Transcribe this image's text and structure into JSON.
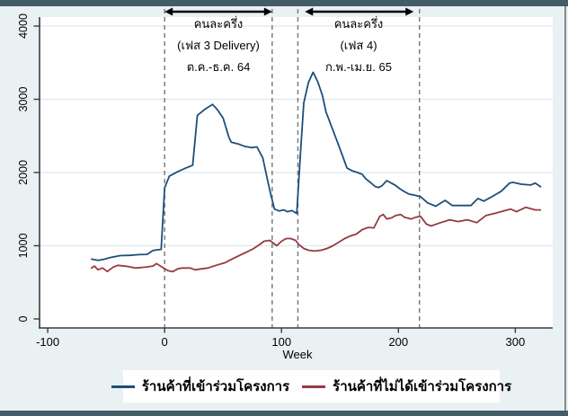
{
  "window": {
    "background_color": "#eaf1f3",
    "accent_bar_color": "#425d66"
  },
  "chart_data": {
    "type": "line",
    "title": "",
    "xlabel": "Week",
    "ylabel": "",
    "x_ticks": [
      -100,
      0,
      100,
      200,
      300
    ],
    "y_ticks": [
      0,
      1000,
      2000,
      3000,
      4000
    ],
    "xlim": [
      -107,
      332
    ],
    "ylim": [
      -123,
      4123
    ],
    "grid": true,
    "legend_position": "bottom-center",
    "colors": {
      "plot_background": "#ffffff",
      "gridline": "#dce9ed",
      "axis": "#3b3b3b",
      "dashed_line": "#757575",
      "arrow": "#000000",
      "text": "#000000"
    },
    "dashed_lines_x": [
      0,
      92,
      114,
      218
    ],
    "arrows": [
      {
        "x_start": 0,
        "x_end": 92
      },
      {
        "x_start": 120,
        "x_end": 213
      }
    ],
    "annotations": [
      {
        "lines": [
          "คนละครึ่ง",
          "(เฟส 3 Delivery)",
          "ต.ค.-ธ.ค. 64"
        ],
        "center_week": 46
      },
      {
        "lines": [
          "คนละครึ่ง",
          "(เฟส 4)",
          "ก.พ.-เม.ย. 65"
        ],
        "center_week": 166
      }
    ],
    "series": [
      {
        "name": "ร้านค้าที่เข้าร่วมโครงการ",
        "color": "#1f4e79",
        "points": [
          [
            -63,
            820
          ],
          [
            -57,
            800
          ],
          [
            -52,
            815
          ],
          [
            -46,
            840
          ],
          [
            -38,
            865
          ],
          [
            -30,
            868
          ],
          [
            -22,
            878
          ],
          [
            -15,
            882
          ],
          [
            -10,
            935
          ],
          [
            -6,
            945
          ],
          [
            -3,
            950
          ],
          [
            0,
            1790
          ],
          [
            4,
            1950
          ],
          [
            11,
            2010
          ],
          [
            18,
            2060
          ],
          [
            24,
            2100
          ],
          [
            28,
            2780
          ],
          [
            35,
            2870
          ],
          [
            41,
            2930
          ],
          [
            45,
            2860
          ],
          [
            50,
            2745
          ],
          [
            55,
            2480
          ],
          [
            57,
            2415
          ],
          [
            63,
            2390
          ],
          [
            68,
            2360
          ],
          [
            74,
            2340
          ],
          [
            79,
            2350
          ],
          [
            84,
            2200
          ],
          [
            88,
            1900
          ],
          [
            91,
            1690
          ],
          [
            94,
            1500
          ],
          [
            98,
            1475
          ],
          [
            102,
            1490
          ],
          [
            105,
            1465
          ],
          [
            109,
            1480
          ],
          [
            113,
            1440
          ],
          [
            116,
            2220
          ],
          [
            119,
            2950
          ],
          [
            123,
            3230
          ],
          [
            127,
            3370
          ],
          [
            131,
            3240
          ],
          [
            135,
            3050
          ],
          [
            138,
            2830
          ],
          [
            142,
            2660
          ],
          [
            147,
            2450
          ],
          [
            151,
            2280
          ],
          [
            156,
            2060
          ],
          [
            161,
            2020
          ],
          [
            165,
            2000
          ],
          [
            169,
            1975
          ],
          [
            172,
            1915
          ],
          [
            176,
            1865
          ],
          [
            180,
            1810
          ],
          [
            183,
            1795
          ],
          [
            186,
            1820
          ],
          [
            190,
            1890
          ],
          [
            194,
            1855
          ],
          [
            197,
            1830
          ],
          [
            201,
            1780
          ],
          [
            205,
            1740
          ],
          [
            209,
            1705
          ],
          [
            214,
            1690
          ],
          [
            219,
            1670
          ],
          [
            225,
            1585
          ],
          [
            232,
            1540
          ],
          [
            240,
            1620
          ],
          [
            246,
            1550
          ],
          [
            254,
            1550
          ],
          [
            262,
            1550
          ],
          [
            268,
            1645
          ],
          [
            273,
            1610
          ],
          [
            280,
            1670
          ],
          [
            288,
            1745
          ],
          [
            295,
            1855
          ],
          [
            298,
            1865
          ],
          [
            305,
            1840
          ],
          [
            313,
            1830
          ],
          [
            317,
            1855
          ],
          [
            322,
            1800
          ]
        ]
      },
      {
        "name": "ร้านค้าที่ไม่ได้เข้าร่วมโครงการ",
        "color": "#963a40",
        "points": [
          [
            -63,
            690
          ],
          [
            -60,
            722
          ],
          [
            -57,
            672
          ],
          [
            -53,
            695
          ],
          [
            -49,
            648
          ],
          [
            -44,
            708
          ],
          [
            -40,
            732
          ],
          [
            -33,
            720
          ],
          [
            -25,
            695
          ],
          [
            -17,
            707
          ],
          [
            -10,
            722
          ],
          [
            -7,
            756
          ],
          [
            -1,
            695
          ],
          [
            3,
            658
          ],
          [
            7,
            646
          ],
          [
            11,
            683
          ],
          [
            15,
            695
          ],
          [
            22,
            695
          ],
          [
            26,
            671
          ],
          [
            31,
            683
          ],
          [
            37,
            695
          ],
          [
            44,
            732
          ],
          [
            52,
            770
          ],
          [
            59,
            829
          ],
          [
            67,
            890
          ],
          [
            75,
            951
          ],
          [
            81,
            1012
          ],
          [
            85,
            1061
          ],
          [
            90,
            1073
          ],
          [
            93,
            1035
          ],
          [
            96,
            1000
          ],
          [
            100,
            1061
          ],
          [
            104,
            1098
          ],
          [
            108,
            1098
          ],
          [
            112,
            1073
          ],
          [
            115,
            1012
          ],
          [
            119,
            963
          ],
          [
            123,
            939
          ],
          [
            128,
            927
          ],
          [
            134,
            939
          ],
          [
            139,
            963
          ],
          [
            144,
            1000
          ],
          [
            149,
            1049
          ],
          [
            154,
            1098
          ],
          [
            159,
            1134
          ],
          [
            164,
            1160
          ],
          [
            169,
            1220
          ],
          [
            174,
            1250
          ],
          [
            179,
            1244
          ],
          [
            184,
            1400
          ],
          [
            187,
            1427
          ],
          [
            190,
            1366
          ],
          [
            194,
            1380
          ],
          [
            198,
            1415
          ],
          [
            202,
            1427
          ],
          [
            205,
            1390
          ],
          [
            211,
            1366
          ],
          [
            215,
            1390
          ],
          [
            219,
            1400
          ],
          [
            224,
            1295
          ],
          [
            228,
            1270
          ],
          [
            236,
            1315
          ],
          [
            244,
            1355
          ],
          [
            251,
            1330
          ],
          [
            259,
            1355
          ],
          [
            267,
            1315
          ],
          [
            275,
            1415
          ],
          [
            282,
            1440
          ],
          [
            290,
            1475
          ],
          [
            296,
            1500
          ],
          [
            301,
            1465
          ],
          [
            309,
            1525
          ],
          [
            317,
            1490
          ],
          [
            322,
            1490
          ]
        ]
      }
    ]
  }
}
